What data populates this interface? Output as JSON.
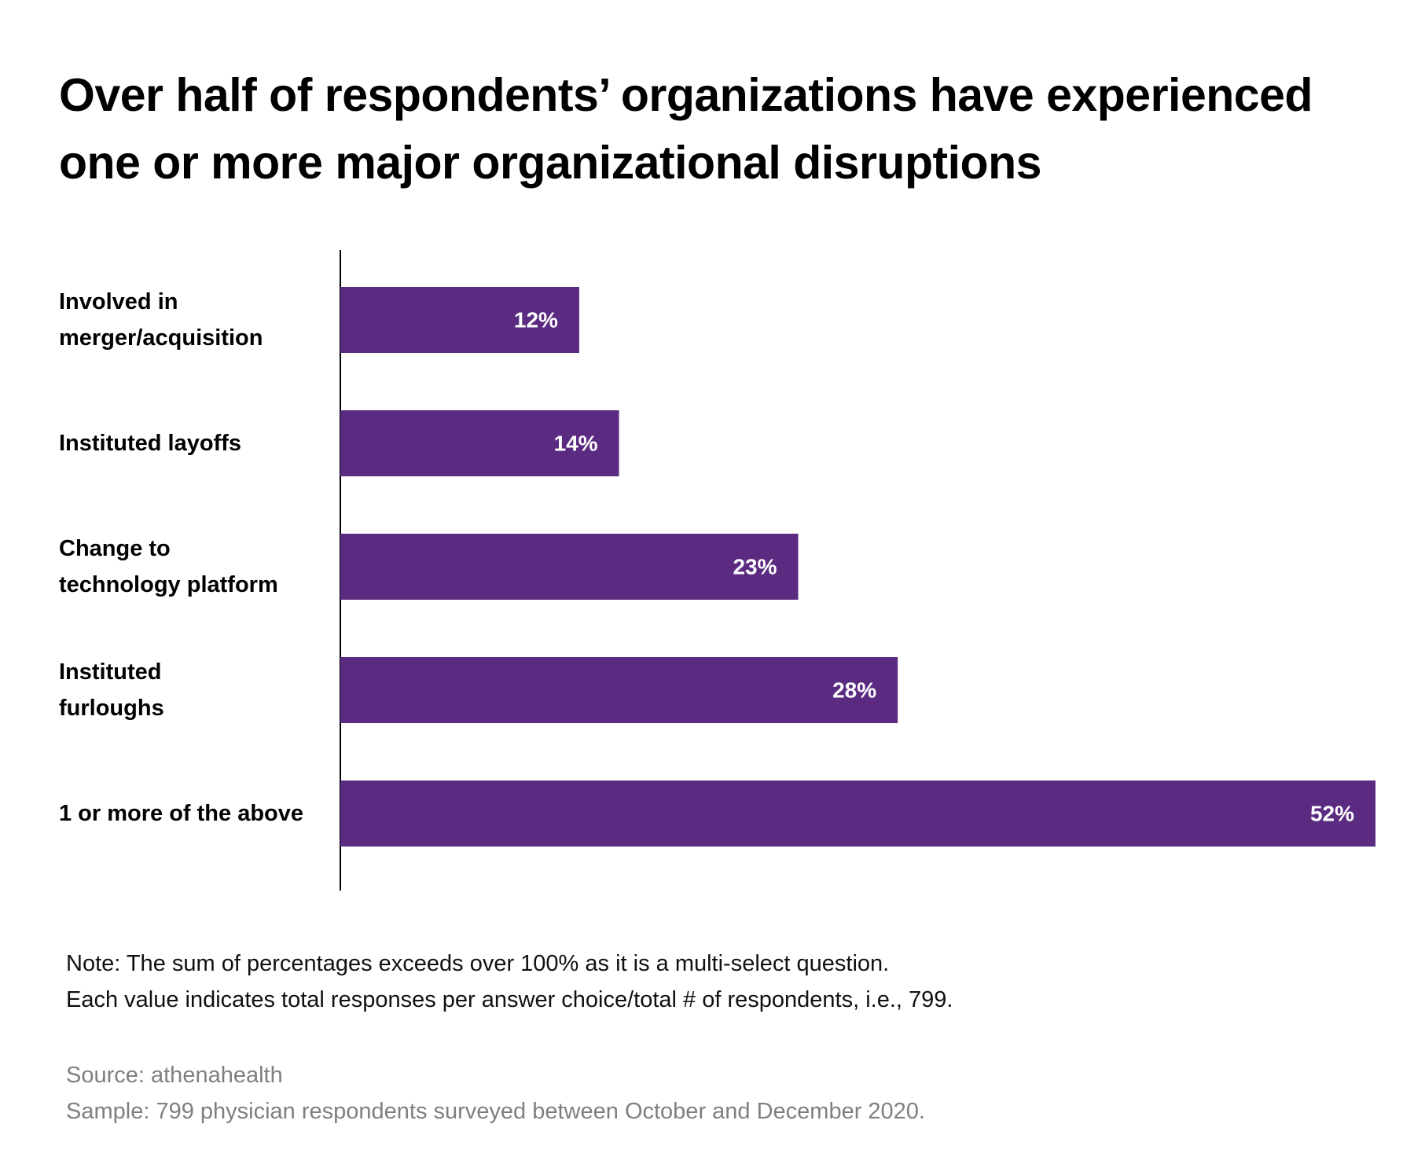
{
  "title_lines": [
    "Over half of respondents’ organizations have experienced",
    "one or more major organizational disruptions"
  ],
  "chart_data": {
    "type": "bar",
    "orientation": "horizontal",
    "categories": [
      [
        "Involved in",
        "merger/acquisition"
      ],
      [
        "Instituted layoffs"
      ],
      [
        "Change to",
        "technology platform"
      ],
      [
        "Instituted",
        "furloughs"
      ],
      [
        "1 or more of the above"
      ]
    ],
    "values": [
      12,
      14,
      23,
      28,
      52
    ],
    "value_labels": [
      "12%",
      "14%",
      "23%",
      "28%",
      "52%"
    ],
    "unit": "%",
    "xlim": [
      0,
      52
    ],
    "bar_color": "#5a2b81",
    "grid": false,
    "legend": "none"
  },
  "note_lines": [
    "Note: The sum of percentages exceeds over 100% as it is a multi-select question.",
    "Each value indicates total responses per answer choice/total # of respondents, i.e., 799."
  ],
  "source_lines": [
    "Source: athenahealth",
    "Sample: 799 physician respondents surveyed between October and December 2020."
  ]
}
